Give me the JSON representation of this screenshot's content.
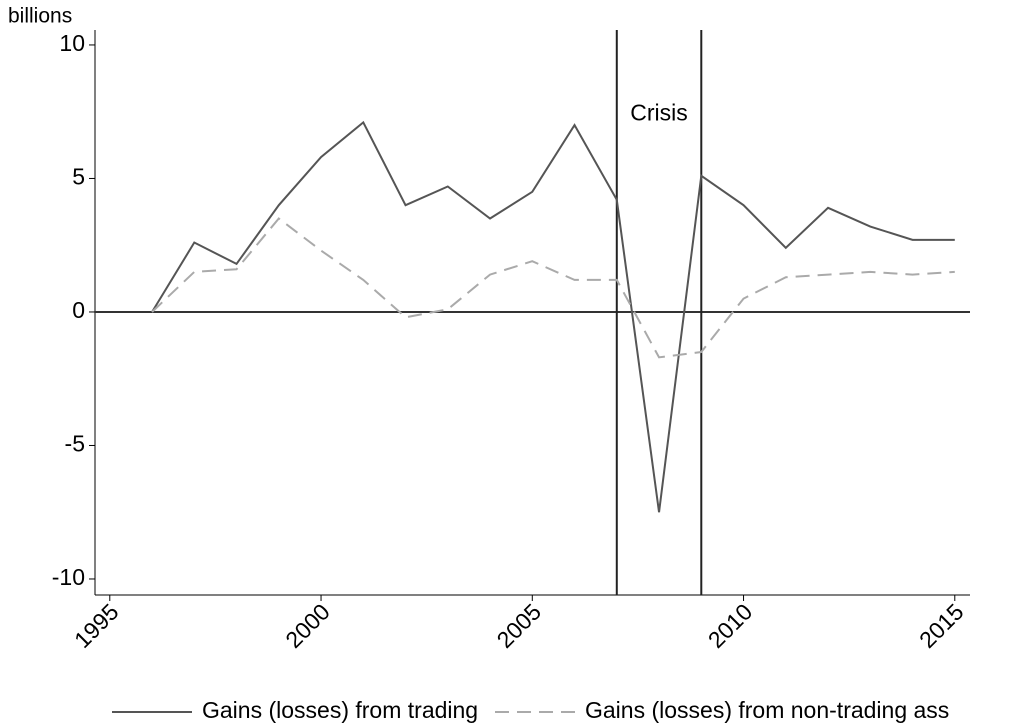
{
  "chart_data": {
    "type": "line",
    "y_label": "billions",
    "x": [
      1996,
      1997,
      1998,
      1999,
      2000,
      2001,
      2002,
      2003,
      2004,
      2005,
      2006,
      2007,
      2008,
      2009,
      2010,
      2011,
      2012,
      2013,
      2014,
      2015
    ],
    "series": [
      {
        "name": "Gains (losses) from trading",
        "color": "#555555",
        "dash": "solid",
        "values": [
          0,
          2.6,
          1.8,
          4.0,
          5.8,
          7.1,
          4.0,
          4.7,
          3.5,
          4.5,
          7.0,
          4.2,
          -7.5,
          5.1,
          4.0,
          2.4,
          3.9,
          3.2,
          2.7,
          2.7
        ]
      },
      {
        "name": "Gains (losses) from non-trading ass",
        "color": "#aaaaaa",
        "dash": "dashed",
        "values": [
          0,
          1.5,
          1.6,
          3.5,
          2.3,
          1.2,
          -0.2,
          0.1,
          1.4,
          1.9,
          1.2,
          1.2,
          -1.7,
          -1.5,
          0.5,
          1.3,
          1.4,
          1.5,
          1.4,
          1.5
        ]
      }
    ],
    "xlim": [
      1994.65,
      2015.36
    ],
    "xticks": [
      1995,
      2000,
      2005,
      2010,
      2015
    ],
    "ylim": [
      -10.6,
      10.56
    ],
    "yticks": [
      -10,
      -5,
      0,
      5,
      10
    ],
    "reference_lines": {
      "y": [
        0
      ],
      "x": [
        2007,
        2009
      ]
    },
    "annotation": {
      "text": "Crisis",
      "x": 2008,
      "y": 7.4
    }
  }
}
